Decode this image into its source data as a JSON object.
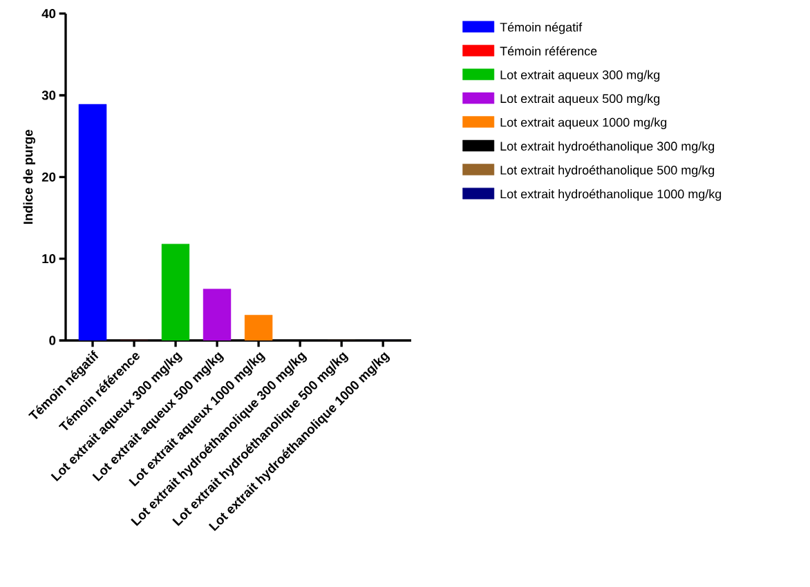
{
  "chart_data": {
    "type": "bar",
    "ylabel": "Indice de purge",
    "categories": [
      "Témoin négatif",
      "Témoin référence",
      "Lot extrait aqueux 300 mg/kg",
      "Lot extrait aqueux 500 mg/kg",
      "Lot extrait aqueux 1000 mg/kg",
      "Lot extrait hydroéthanolique 300 mg/kg",
      "Lot extrait hydroéthanolique 500 mg/kg",
      "Lot extrait hydroéthanolique 1000 mg/kg"
    ],
    "series": [
      {
        "name": "Témoin négatif",
        "color": "#0000ff",
        "values": [
          28.9,
          null,
          null,
          null,
          null,
          null,
          null,
          null
        ]
      },
      {
        "name": "Témoin référence",
        "color": "#ff0000",
        "values": [
          null,
          0,
          null,
          null,
          null,
          null,
          null,
          null
        ]
      },
      {
        "name": "Lot extrait aqueux 300 mg/kg",
        "color": "#00bf00",
        "values": [
          null,
          null,
          11.8,
          null,
          null,
          null,
          null,
          null
        ]
      },
      {
        "name": "Lot extrait aqueux 500 mg/kg",
        "color": "#aa0adf",
        "values": [
          null,
          null,
          null,
          6.3,
          null,
          null,
          null,
          null
        ]
      },
      {
        "name": "Lot extrait aqueux 1000 mg/kg",
        "color": "#ff8000",
        "values": [
          null,
          null,
          null,
          null,
          3.1,
          null,
          null,
          null
        ]
      },
      {
        "name": "Lot extrait hydroéthanolique 300 mg/kg",
        "color": "#000000",
        "values": [
          null,
          null,
          null,
          null,
          null,
          0,
          null,
          null
        ]
      },
      {
        "name": "Lot extrait hydroéthanolique 500 mg/kg",
        "color": "#96652a",
        "values": [
          null,
          null,
          null,
          null,
          null,
          null,
          0,
          null
        ]
      },
      {
        "name": "Lot extrait hydroéthanolique 1000 mg/kg",
        "color": "#000080",
        "values": [
          null,
          null,
          null,
          null,
          null,
          null,
          null,
          0
        ]
      }
    ],
    "ylim": [
      0,
      40
    ],
    "yticks": [
      0,
      10,
      20,
      30,
      40
    ],
    "legend": "right"
  }
}
